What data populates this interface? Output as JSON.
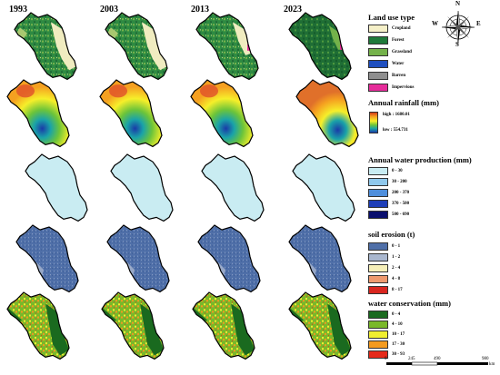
{
  "years": [
    "1993",
    "2003",
    "2013",
    "2023"
  ],
  "legends": {
    "land_use": {
      "title": "Land use type",
      "items": [
        {
          "label": "Cropland",
          "color": "#f5f0c8"
        },
        {
          "label": "Forest",
          "color": "#1f7a3a"
        },
        {
          "label": "Grassland",
          "color": "#74b24a"
        },
        {
          "label": "Water",
          "color": "#1f4fbf"
        },
        {
          "label": "Barren",
          "color": "#8f8f8f"
        },
        {
          "label": "Impervious",
          "color": "#e62d9a"
        }
      ]
    },
    "rainfall": {
      "title": "Annual rainfall (mm)",
      "high": "high : 1680.01",
      "low": "low : 554.731"
    },
    "water_production": {
      "title": "Annual water production (mm)",
      "items": [
        {
          "label": "0 - 30",
          "color": "#c9ecf2"
        },
        {
          "label": "30 - 200",
          "color": "#8fc8ec"
        },
        {
          "label": "200 - 370",
          "color": "#4f8fdc"
        },
        {
          "label": "370 - 500",
          "color": "#1f3fb8"
        },
        {
          "label": "500 - 690",
          "color": "#0a0f6e"
        }
      ]
    },
    "soil_erosion": {
      "title": "soil erosion (t)",
      "items": [
        {
          "label": "0 - 1",
          "color": "#4f6fa8"
        },
        {
          "label": "1 - 2",
          "color": "#a9b7cf"
        },
        {
          "label": "2 - 4",
          "color": "#f6efb8"
        },
        {
          "label": "4 - 8",
          "color": "#ef9a6f"
        },
        {
          "label": "8 - 17",
          "color": "#d9261f"
        }
      ]
    },
    "water_conservation": {
      "title": "water conservation (mm)",
      "items": [
        {
          "label": "0 - 4",
          "color": "#1a6a1f"
        },
        {
          "label": "4 - 10",
          "color": "#7ab82a"
        },
        {
          "label": "10 - 17",
          "color": "#f0ee30"
        },
        {
          "label": "17 - 30",
          "color": "#f39a1f"
        },
        {
          "label": "30 - 93",
          "color": "#e62a1a"
        }
      ]
    }
  },
  "compass": {
    "n": "N",
    "s": "S",
    "e": "E",
    "w": "W"
  },
  "scale": {
    "ticks": [
      "0",
      "245",
      "490",
      "980"
    ],
    "unit": "km"
  }
}
